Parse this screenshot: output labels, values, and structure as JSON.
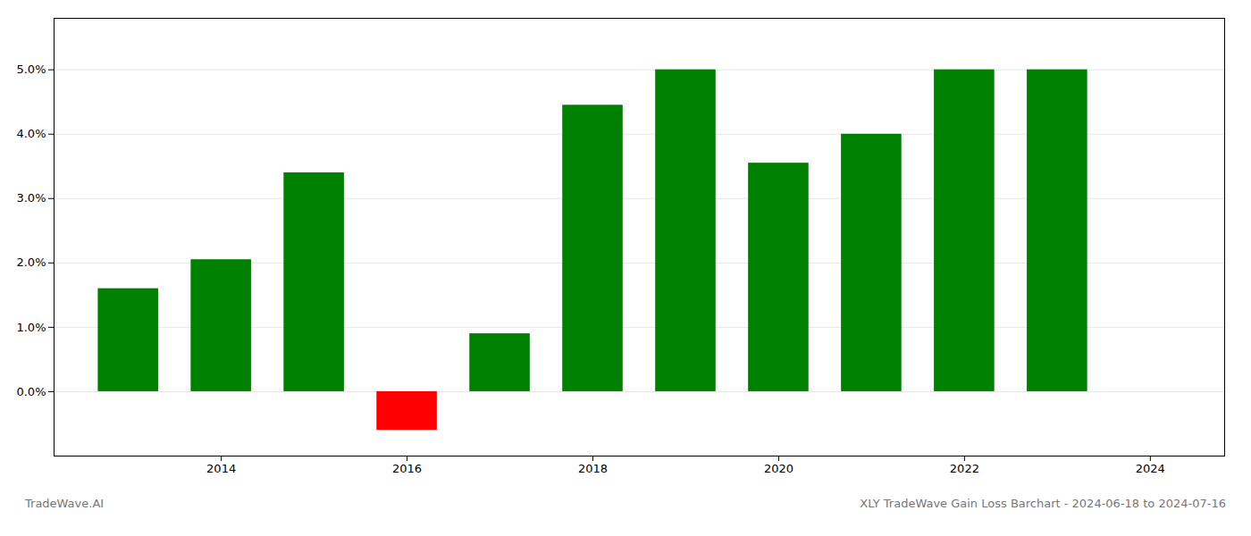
{
  "chart_data": {
    "type": "bar",
    "title": "XLY TradeWave Gain Loss Barchart - 2024-06-18 to 2024-07-16",
    "annotations": [
      "TradeWave.AI"
    ],
    "x": [
      2013,
      2014,
      2015,
      2016,
      2017,
      2018,
      2019,
      2020,
      2021,
      2022,
      2023
    ],
    "values": [
      0.016,
      0.0205,
      0.034,
      -0.006,
      0.009,
      0.0445,
      0.05,
      0.0355,
      0.04,
      0.05,
      0.05
    ],
    "colors": [
      "#008000",
      "#008000",
      "#008000",
      "#ff0000",
      "#008000",
      "#008000",
      "#008000",
      "#008000",
      "#008000",
      "#008000",
      "#008000"
    ],
    "xlim": [
      2012.2,
      2024.8
    ],
    "xticks": [
      2014,
      2016,
      2018,
      2020,
      2022,
      2024
    ],
    "ylim": [
      -0.01,
      0.058
    ],
    "yticks": [
      {
        "value": 0.0,
        "label": "0.0%"
      },
      {
        "value": 0.01,
        "label": "1.0%"
      },
      {
        "value": 0.02,
        "label": "2.0%"
      },
      {
        "value": 0.03,
        "label": "3.0%"
      },
      {
        "value": 0.04,
        "label": "4.0%"
      },
      {
        "value": 0.05,
        "label": "5.0%"
      }
    ],
    "grid": true
  }
}
